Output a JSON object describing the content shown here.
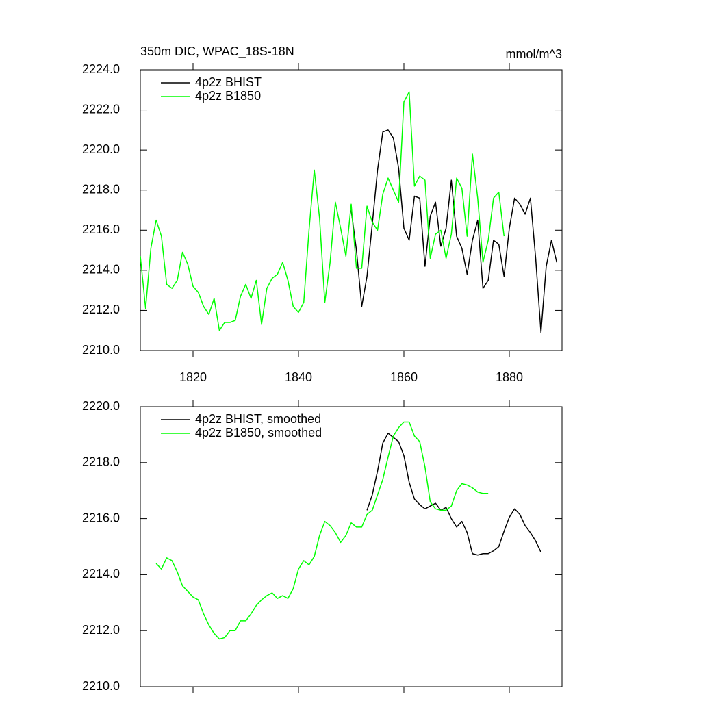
{
  "chart_data": [
    {
      "type": "line",
      "title": "350m DIC, WPAC_18S-18N",
      "units": "mmol/m^3",
      "xlim": [
        1810,
        1890
      ],
      "xticks": [
        1820,
        1840,
        1860,
        1880
      ],
      "ylim": [
        2210,
        2224
      ],
      "yticks": [
        {
          "value": 2210,
          "label": "2210.0"
        },
        {
          "value": 2212,
          "label": "2212.0"
        },
        {
          "value": 2214,
          "label": "2214.0"
        },
        {
          "value": 2216,
          "label": "2216.0"
        },
        {
          "value": 2218,
          "label": "2218.0"
        },
        {
          "value": 2220,
          "label": "2220.0"
        },
        {
          "value": 2222,
          "label": "2222.0"
        },
        {
          "value": 2224,
          "label": "2224.0"
        }
      ],
      "series": [
        {
          "name": "4p2z BHIST",
          "color": "#000000",
          "x": [
            1850,
            1851,
            1852,
            1853,
            1854,
            1855,
            1856,
            1857,
            1858,
            1859,
            1860,
            1861,
            1862,
            1863,
            1864,
            1865,
            1866,
            1867,
            1868,
            1869,
            1870,
            1871,
            1872,
            1873,
            1874,
            1875,
            1876,
            1877,
            1878,
            1879,
            1880,
            1881,
            1882,
            1883,
            1884,
            1885,
            1886,
            1887,
            1888,
            1889
          ],
          "values": [
            2217.0,
            2215.0,
            2212.2,
            2213.7,
            2216.3,
            2219.0,
            2220.9,
            2221.0,
            2220.6,
            2219.1,
            2216.1,
            2215.5,
            2217.7,
            2217.6,
            2214.2,
            2216.7,
            2217.4,
            2215.2,
            2216.1,
            2218.5,
            2215.7,
            2215.1,
            2213.8,
            2215.5,
            2216.5,
            2213.1,
            2213.5,
            2215.5,
            2215.3,
            2213.7,
            2216.1,
            2217.6,
            2217.3,
            2216.8,
            2217.6,
            2214.6,
            2210.9,
            2214.2,
            2215.5,
            2214.4
          ]
        },
        {
          "name": "4p2z B1850",
          "color": "#00ff00",
          "x": [
            1810,
            1811,
            1812,
            1813,
            1814,
            1815,
            1816,
            1817,
            1818,
            1819,
            1820,
            1821,
            1822,
            1823,
            1824,
            1825,
            1826,
            1827,
            1828,
            1829,
            1830,
            1831,
            1832,
            1833,
            1834,
            1835,
            1836,
            1837,
            1838,
            1839,
            1840,
            1841,
            1842,
            1843,
            1844,
            1845,
            1846,
            1847,
            1848,
            1849,
            1850,
            1851,
            1852,
            1853,
            1854,
            1855,
            1856,
            1857,
            1858,
            1859,
            1860,
            1861,
            1862,
            1863,
            1864,
            1865,
            1866,
            1867,
            1868,
            1869,
            1870,
            1871,
            1872,
            1873,
            1874,
            1875,
            1876,
            1877,
            1878,
            1879
          ],
          "values": [
            2214.7,
            2212.1,
            2215.1,
            2216.5,
            2215.7,
            2213.3,
            2213.1,
            2213.5,
            2214.9,
            2214.3,
            2213.2,
            2212.9,
            2212.2,
            2211.8,
            2212.6,
            2211.0,
            2211.4,
            2211.4,
            2211.5,
            2212.7,
            2213.3,
            2212.6,
            2213.5,
            2211.3,
            2213.1,
            2213.6,
            2213.8,
            2214.4,
            2213.5,
            2212.2,
            2211.9,
            2212.4,
            2216.0,
            2219.0,
            2216.6,
            2212.4,
            2214.4,
            2217.4,
            2216.1,
            2214.7,
            2217.3,
            2214.1,
            2214.1,
            2217.2,
            2216.4,
            2216.0,
            2217.8,
            2218.6,
            2218.0,
            2217.4,
            2222.4,
            2222.9,
            2218.2,
            2218.7,
            2218.5,
            2214.6,
            2215.8,
            2216.0,
            2214.6,
            2215.8,
            2218.6,
            2218.1,
            2215.7,
            2219.8,
            2217.6,
            2214.4,
            2215.5,
            2217.6,
            2217.9,
            2215.7
          ]
        }
      ]
    },
    {
      "type": "line",
      "xlim": [
        1810,
        1890
      ],
      "xticks": [
        1820,
        1840,
        1860,
        1880
      ],
      "ylim": [
        2210,
        2220
      ],
      "yticks": [
        {
          "value": 2210,
          "label": "2210.0"
        },
        {
          "value": 2212,
          "label": "2212.0"
        },
        {
          "value": 2214,
          "label": "2214.0"
        },
        {
          "value": 2216,
          "label": "2216.0"
        },
        {
          "value": 2218,
          "label": "2218.0"
        },
        {
          "value": 2220,
          "label": "2220.0"
        }
      ],
      "series": [
        {
          "name": "4p2z BHIST, smoothed",
          "color": "#000000",
          "x": [
            1853,
            1854,
            1855,
            1856,
            1857,
            1858,
            1859,
            1860,
            1861,
            1862,
            1863,
            1864,
            1865,
            1866,
            1867,
            1868,
            1869,
            1870,
            1871,
            1872,
            1873,
            1874,
            1875,
            1876,
            1877,
            1878,
            1879,
            1880,
            1881,
            1882,
            1883,
            1884,
            1885,
            1886
          ],
          "values": [
            2216.3,
            2216.85,
            2217.7,
            2218.7,
            2219.05,
            2218.9,
            2218.75,
            2218.25,
            2217.3,
            2216.7,
            2216.5,
            2216.35,
            2216.45,
            2216.55,
            2216.3,
            2216.4,
            2216.0,
            2215.7,
            2215.9,
            2215.5,
            2214.75,
            2214.7,
            2214.75,
            2214.75,
            2214.85,
            2215.0,
            2215.55,
            2216.05,
            2216.35,
            2216.15,
            2215.75,
            2215.5,
            2215.2,
            2214.8
          ]
        },
        {
          "name": "4p2z B1850, smoothed",
          "color": "#00ff00",
          "x": [
            1813,
            1814,
            1815,
            1816,
            1817,
            1818,
            1819,
            1820,
            1821,
            1822,
            1823,
            1824,
            1825,
            1826,
            1827,
            1828,
            1829,
            1830,
            1831,
            1832,
            1833,
            1834,
            1835,
            1836,
            1837,
            1838,
            1839,
            1840,
            1841,
            1842,
            1843,
            1844,
            1845,
            1846,
            1847,
            1848,
            1849,
            1850,
            1851,
            1852,
            1853,
            1854,
            1855,
            1856,
            1857,
            1858,
            1859,
            1860,
            1861,
            1862,
            1863,
            1864,
            1865,
            1866,
            1867,
            1868,
            1869,
            1870,
            1871,
            1872,
            1873,
            1874,
            1875,
            1876
          ],
          "values": [
            2214.4,
            2214.2,
            2214.6,
            2214.5,
            2214.1,
            2213.6,
            2213.4,
            2213.2,
            2213.1,
            2212.6,
            2212.2,
            2211.9,
            2211.7,
            2211.75,
            2212.0,
            2212.0,
            2212.35,
            2212.35,
            2212.6,
            2212.9,
            2213.1,
            2213.25,
            2213.35,
            2213.15,
            2213.25,
            2213.15,
            2213.5,
            2214.2,
            2214.5,
            2214.35,
            2214.65,
            2215.4,
            2215.9,
            2215.75,
            2215.5,
            2215.15,
            2215.4,
            2215.85,
            2215.7,
            2215.7,
            2216.15,
            2216.3,
            2216.85,
            2217.4,
            2218.2,
            2218.95,
            2219.25,
            2219.45,
            2219.45,
            2218.95,
            2218.75,
            2217.85,
            2216.6,
            2216.35,
            2216.3,
            2216.3,
            2216.45,
            2217.0,
            2217.25,
            2217.2,
            2217.1,
            2216.95,
            2216.9,
            2216.9
          ]
        }
      ]
    }
  ]
}
